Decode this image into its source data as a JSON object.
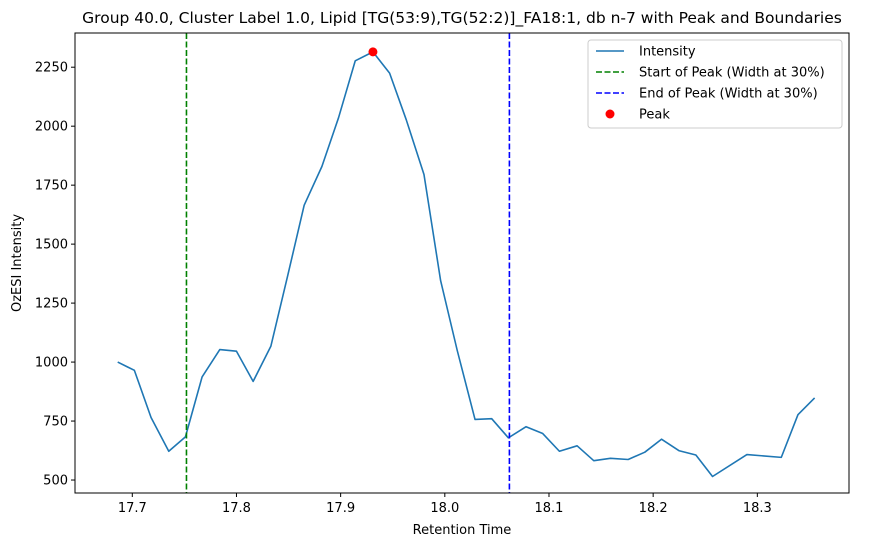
{
  "chart_data": {
    "type": "line",
    "title": "Group 40.0, Cluster Label 1.0, Lipid [TG(53:9),TG(52:2)]_FA18:1, db n-7 with Peak and Boundaries",
    "xlabel": "Retention Time",
    "ylabel": "OzESI Intensity",
    "xlim": [
      17.645,
      18.388
    ],
    "ylim": [
      445,
      2395
    ],
    "xticks": [
      17.7,
      17.8,
      17.9,
      18.0,
      18.1,
      18.2,
      18.3
    ],
    "xtick_labels": [
      "17.7",
      "17.8",
      "17.9",
      "18.0",
      "18.1",
      "18.2",
      "18.3"
    ],
    "yticks": [
      500,
      750,
      1000,
      1250,
      1500,
      1750,
      2000,
      2250
    ],
    "ytick_labels": [
      "500",
      "750",
      "1000",
      "1250",
      "1500",
      "1750",
      "2000",
      "2250"
    ],
    "grid": false,
    "legend_position": "upper right",
    "series": [
      {
        "name": "Intensity",
        "kind": "line",
        "color": "#1f77b4",
        "x": [
          17.686,
          17.702,
          17.718,
          17.735,
          17.751,
          17.767,
          17.784,
          17.8,
          17.816,
          17.833,
          17.849,
          17.865,
          17.882,
          17.898,
          17.914,
          17.931,
          17.947,
          17.963,
          17.98,
          17.996,
          18.012,
          18.029,
          18.045,
          18.061,
          18.078,
          18.094,
          18.11,
          18.127,
          18.143,
          18.159,
          18.176,
          18.192,
          18.208,
          18.225,
          18.241,
          18.257,
          18.29,
          18.323,
          18.339,
          18.355
        ],
        "y": [
          1000,
          965,
          765,
          622,
          683,
          937,
          1053,
          1046,
          918,
          1067,
          1363,
          1665,
          1829,
          2036,
          2277,
          2315,
          2225,
          2027,
          1795,
          1345,
          1048,
          757,
          760,
          679,
          726,
          697,
          622,
          645,
          582,
          592,
          587,
          618,
          673,
          624,
          606,
          515,
          608,
          596,
          777,
          848
        ]
      },
      {
        "name": "Start of Peak (Width at 30%)",
        "kind": "vline",
        "color": "#008000",
        "x": 17.752
      },
      {
        "name": "End of Peak (Width at 30%)",
        "kind": "vline",
        "color": "#0000ff",
        "x": 18.062
      },
      {
        "name": "Peak",
        "kind": "point",
        "color": "#ff0000",
        "x": 17.931,
        "y": 2315
      }
    ]
  }
}
